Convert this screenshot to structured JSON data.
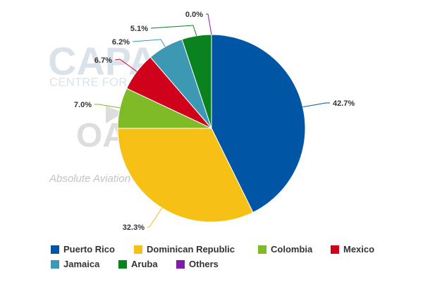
{
  "chart_data": {
    "type": "pie",
    "title": "",
    "start_angle_deg": 0,
    "direction": "clockwise",
    "labels": [
      "Puerto Rico",
      "Dominican Republic",
      "Colombia",
      "Mexico",
      "Jamaica",
      "Aruba",
      "Others"
    ],
    "values": [
      42.7,
      32.3,
      7.0,
      6.7,
      6.2,
      5.1,
      0.0
    ],
    "value_labels": [
      "42.7%",
      "32.3%",
      "7.0%",
      "6.7%",
      "6.2%",
      "5.1%",
      "0.0%"
    ],
    "colors": [
      "#0055a5",
      "#f7c014",
      "#7fba27",
      "#d0021b",
      "#3d98b4",
      "#09821f",
      "#7d1fa6"
    ],
    "legend_position": "bottom"
  },
  "legend": {
    "items": [
      {
        "label": "Puerto Rico",
        "color": "#0055a5"
      },
      {
        "label": "Dominican Republic",
        "color": "#f7c014"
      },
      {
        "label": "Colombia",
        "color": "#7fba27"
      },
      {
        "label": "Mexico",
        "color": "#d0021b"
      },
      {
        "label": "Jamaica",
        "color": "#3d98b4"
      },
      {
        "label": "Aruba",
        "color": "#09821f"
      },
      {
        "label": "Others",
        "color": "#7d1fa6"
      }
    ]
  },
  "watermark": {
    "brand": "CAPA",
    "subtitle": "CENTRE FOR AVIATION",
    "tagline": "Absolute Aviation"
  }
}
